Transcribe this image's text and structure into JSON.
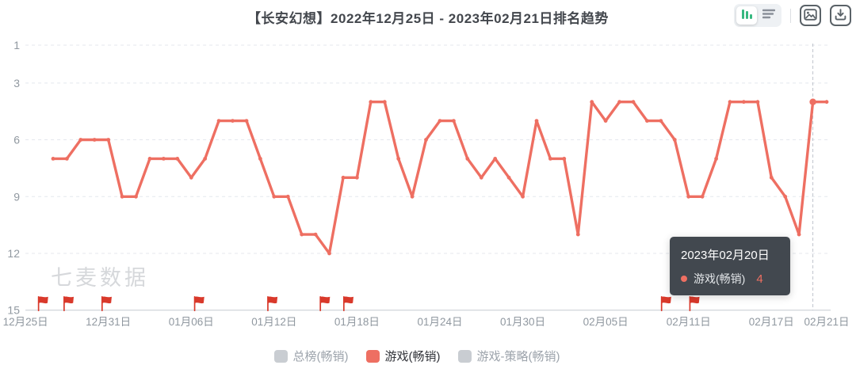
{
  "header": {
    "title": "【长安幻想】2022年12月25日 - 2023年02月21日排名趋势"
  },
  "chart_data": {
    "type": "line",
    "title": "【长安幻想】2022年12月25日 - 2023年02月21日排名趋势",
    "x_axis": {
      "tick_labels": [
        "12月25日",
        "12月31日",
        "01月06日",
        "01月12日",
        "01月18日",
        "01月24日",
        "01月30日",
        "02月05日",
        "02月11日",
        "02月17日",
        "02月21日"
      ],
      "tick_day_offsets": [
        0,
        6,
        12,
        18,
        24,
        30,
        36,
        42,
        48,
        54,
        58
      ],
      "total_days": 58
    },
    "y_axis": {
      "ticks": [
        1,
        3,
        6,
        9,
        12,
        15
      ],
      "min": 1,
      "max": 15,
      "inverted": true,
      "grid": "dashed"
    },
    "series": [
      {
        "name": "游戏(畅销)",
        "start_day_offset": 2,
        "values": [
          7,
          7,
          6,
          6,
          6,
          9,
          9,
          7,
          7,
          7,
          8,
          7,
          5,
          5,
          5,
          7,
          9,
          9,
          11,
          11,
          12,
          8,
          8,
          4,
          4,
          7,
          9,
          6,
          5,
          5,
          7,
          8,
          7,
          8,
          9,
          5,
          7,
          7,
          11,
          4,
          5,
          4,
          4,
          5,
          5,
          6,
          9,
          9,
          7,
          4,
          4,
          4,
          8,
          9,
          11,
          4,
          4
        ]
      }
    ],
    "event_flags": {
      "day_offsets": [
        0.9,
        2.75,
        5.5,
        12.2,
        17.5,
        21.3,
        23.0,
        46.0,
        48.05
      ]
    },
    "hover": {
      "day_offset": 57,
      "value": 4
    },
    "legend_position": "bottom"
  },
  "tooltip": {
    "title": "2023年02月20日",
    "series_label": "游戏(畅销)",
    "value": "4"
  },
  "legend": {
    "items": [
      {
        "label": "总榜(畅销)",
        "active": false
      },
      {
        "label": "游戏(畅销)",
        "active": true
      },
      {
        "label": "游戏-策略(畅销)",
        "active": false
      }
    ]
  },
  "watermark": "七麦数据",
  "colors": {
    "series": "#ee6f62",
    "flag": "#d9392b",
    "grid_line": "#e4e7ed",
    "axis_line": "#c6cad1",
    "axis_label": "#9098a0",
    "crosshair": "#c0c4cc",
    "tooltip_bg": "rgba(56,62,70,0.95)",
    "legend_inactive_swatch": "#c9cdd2",
    "legend_inactive_text": "#9ca3ab",
    "legend_active_text": "#303238",
    "toggle_active_green": "#35b87f",
    "icon_gray": "#5a6268",
    "icon_light_gray": "#8a9099",
    "watermark": "#d6d8db"
  }
}
